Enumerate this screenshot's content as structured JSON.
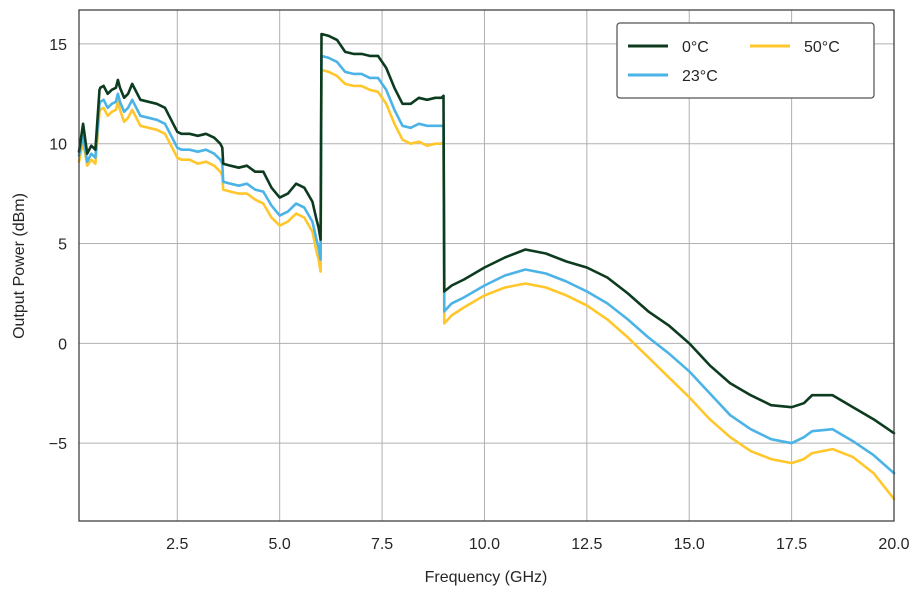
{
  "chart_data": {
    "type": "line",
    "xlabel": "Frequency (GHz)",
    "ylabel": "Output Power (dBm)",
    "xlim": [
      0.1,
      20.0
    ],
    "ylim": [
      -8.9,
      16.7
    ],
    "xticks": [
      2.5,
      5.0,
      7.5,
      10.0,
      12.5,
      15.0,
      17.5,
      20.0
    ],
    "xtick_labels": [
      "2.5",
      "5.0",
      "7.5",
      "10.0",
      "12.5",
      "15.0",
      "17.5",
      "20.0"
    ],
    "yticks": [
      -5,
      0,
      5,
      10,
      15
    ],
    "ytick_labels": [
      "−5",
      "0",
      "5",
      "10",
      "15"
    ],
    "grid": true,
    "legend_position": "top-right",
    "legend_columns": 2,
    "series": [
      {
        "name": "0°C",
        "color": "#0d3b1f",
        "x": [
          0.1,
          0.2,
          0.3,
          0.4,
          0.5,
          0.6,
          0.62,
          0.7,
          0.8,
          0.9,
          1.0,
          1.05,
          1.1,
          1.2,
          1.3,
          1.4,
          1.6,
          1.8,
          2.0,
          2.2,
          2.4,
          2.5,
          2.6,
          2.8,
          3.0,
          3.2,
          3.4,
          3.55,
          3.6,
          3.62,
          3.8,
          4.0,
          4.2,
          4.4,
          4.6,
          4.8,
          5.0,
          5.2,
          5.4,
          5.6,
          5.8,
          5.9,
          5.95,
          6.0,
          6.02,
          6.2,
          6.4,
          6.6,
          6.8,
          7.0,
          7.2,
          7.4,
          7.6,
          7.8,
          8.0,
          8.2,
          8.4,
          8.6,
          8.8,
          8.95,
          9.0,
          9.02,
          9.2,
          9.5,
          10.0,
          10.5,
          11.0,
          11.5,
          12.0,
          12.5,
          13.0,
          13.5,
          14.0,
          14.5,
          15.0,
          15.5,
          16.0,
          16.5,
          17.0,
          17.5,
          17.8,
          18.0,
          18.5,
          19.0,
          19.5,
          20.0
        ],
        "values": [
          9.6,
          11.0,
          9.5,
          9.9,
          9.7,
          12.7,
          12.8,
          12.9,
          12.5,
          12.7,
          12.8,
          13.2,
          12.8,
          12.3,
          12.5,
          13.0,
          12.2,
          12.1,
          12.0,
          11.8,
          11.0,
          10.6,
          10.5,
          10.5,
          10.4,
          10.5,
          10.3,
          10.0,
          9.8,
          9.0,
          8.9,
          8.8,
          8.9,
          8.6,
          8.6,
          7.8,
          7.3,
          7.5,
          8.0,
          7.8,
          7.1,
          6.2,
          5.8,
          5.2,
          15.5,
          15.4,
          15.2,
          14.6,
          14.5,
          14.5,
          14.4,
          14.4,
          13.8,
          12.8,
          12.0,
          12.0,
          12.3,
          12.2,
          12.3,
          12.3,
          12.4,
          2.6,
          2.9,
          3.2,
          3.8,
          4.3,
          4.7,
          4.5,
          4.1,
          3.8,
          3.3,
          2.5,
          1.6,
          0.9,
          0.0,
          -1.1,
          -2.0,
          -2.6,
          -3.1,
          -3.2,
          -3.0,
          -2.6,
          -2.6,
          -3.2,
          -3.8,
          -4.5
        ]
      },
      {
        "name": "23°C",
        "color": "#4bb3e6",
        "x": [
          0.1,
          0.2,
          0.3,
          0.4,
          0.5,
          0.6,
          0.62,
          0.7,
          0.8,
          0.9,
          1.0,
          1.05,
          1.1,
          1.2,
          1.3,
          1.4,
          1.6,
          1.8,
          2.0,
          2.2,
          2.4,
          2.5,
          2.6,
          2.8,
          3.0,
          3.2,
          3.4,
          3.55,
          3.6,
          3.62,
          3.8,
          4.0,
          4.2,
          4.4,
          4.6,
          4.8,
          5.0,
          5.2,
          5.4,
          5.6,
          5.8,
          5.9,
          5.95,
          6.0,
          6.02,
          6.2,
          6.4,
          6.6,
          6.8,
          7.0,
          7.2,
          7.4,
          7.6,
          7.8,
          8.0,
          8.2,
          8.4,
          8.6,
          8.8,
          8.95,
          9.0,
          9.02,
          9.2,
          9.5,
          10.0,
          10.5,
          11.0,
          11.5,
          12.0,
          12.5,
          13.0,
          13.5,
          14.0,
          14.5,
          15.0,
          15.5,
          16.0,
          16.5,
          17.0,
          17.5,
          17.8,
          18.0,
          18.5,
          19.0,
          19.5,
          20.0
        ],
        "values": [
          9.4,
          10.4,
          9.1,
          9.5,
          9.3,
          12.0,
          12.1,
          12.2,
          11.8,
          12.0,
          12.1,
          12.5,
          12.1,
          11.6,
          11.8,
          12.2,
          11.4,
          11.3,
          11.2,
          11.0,
          10.2,
          9.8,
          9.7,
          9.7,
          9.6,
          9.7,
          9.5,
          9.2,
          9.0,
          8.1,
          8.0,
          7.9,
          8.0,
          7.7,
          7.6,
          6.9,
          6.4,
          6.6,
          7.0,
          6.8,
          6.1,
          5.2,
          4.8,
          4.2,
          14.4,
          14.3,
          14.1,
          13.6,
          13.5,
          13.5,
          13.3,
          13.3,
          12.7,
          11.7,
          10.9,
          10.8,
          11.0,
          10.9,
          10.9,
          10.9,
          10.9,
          1.6,
          2.0,
          2.3,
          2.9,
          3.4,
          3.7,
          3.5,
          3.1,
          2.6,
          2.0,
          1.2,
          0.3,
          -0.5,
          -1.4,
          -2.5,
          -3.6,
          -4.3,
          -4.8,
          -5.0,
          -4.7,
          -4.4,
          -4.3,
          -4.9,
          -5.6,
          -6.5
        ]
      },
      {
        "name": "50°C",
        "color": "#ffc72c",
        "x": [
          0.1,
          0.2,
          0.3,
          0.4,
          0.5,
          0.6,
          0.62,
          0.7,
          0.8,
          0.9,
          1.0,
          1.05,
          1.1,
          1.2,
          1.3,
          1.4,
          1.6,
          1.8,
          2.0,
          2.2,
          2.4,
          2.5,
          2.6,
          2.8,
          3.0,
          3.2,
          3.4,
          3.55,
          3.6,
          3.62,
          3.8,
          4.0,
          4.2,
          4.4,
          4.6,
          4.8,
          5.0,
          5.2,
          5.4,
          5.6,
          5.8,
          5.9,
          5.95,
          6.0,
          6.02,
          6.2,
          6.4,
          6.6,
          6.8,
          7.0,
          7.2,
          7.4,
          7.6,
          7.8,
          8.0,
          8.2,
          8.4,
          8.6,
          8.8,
          8.95,
          9.0,
          9.02,
          9.2,
          9.5,
          10.0,
          10.5,
          11.0,
          11.5,
          12.0,
          12.5,
          13.0,
          13.5,
          14.0,
          14.5,
          15.0,
          15.5,
          16.0,
          16.5,
          17.0,
          17.5,
          17.8,
          18.0,
          18.5,
          19.0,
          19.5,
          20.0
        ],
        "values": [
          9.1,
          10.1,
          8.9,
          9.2,
          9.0,
          11.6,
          11.7,
          11.8,
          11.4,
          11.6,
          11.7,
          12.1,
          11.7,
          11.1,
          11.3,
          11.7,
          10.9,
          10.8,
          10.7,
          10.5,
          9.7,
          9.3,
          9.2,
          9.2,
          9.0,
          9.1,
          8.9,
          8.6,
          8.4,
          7.7,
          7.6,
          7.5,
          7.5,
          7.2,
          7.0,
          6.3,
          5.9,
          6.1,
          6.5,
          6.3,
          5.6,
          4.6,
          4.2,
          3.6,
          13.7,
          13.6,
          13.4,
          13.0,
          12.9,
          12.9,
          12.7,
          12.6,
          12.0,
          11.0,
          10.2,
          10.0,
          10.1,
          9.9,
          10.0,
          10.0,
          10.1,
          1.0,
          1.4,
          1.8,
          2.4,
          2.8,
          3.0,
          2.8,
          2.4,
          1.9,
          1.2,
          0.3,
          -0.7,
          -1.7,
          -2.7,
          -3.8,
          -4.7,
          -5.4,
          -5.8,
          -6.0,
          -5.8,
          -5.5,
          -5.3,
          -5.7,
          -6.5,
          -7.8
        ]
      }
    ]
  }
}
